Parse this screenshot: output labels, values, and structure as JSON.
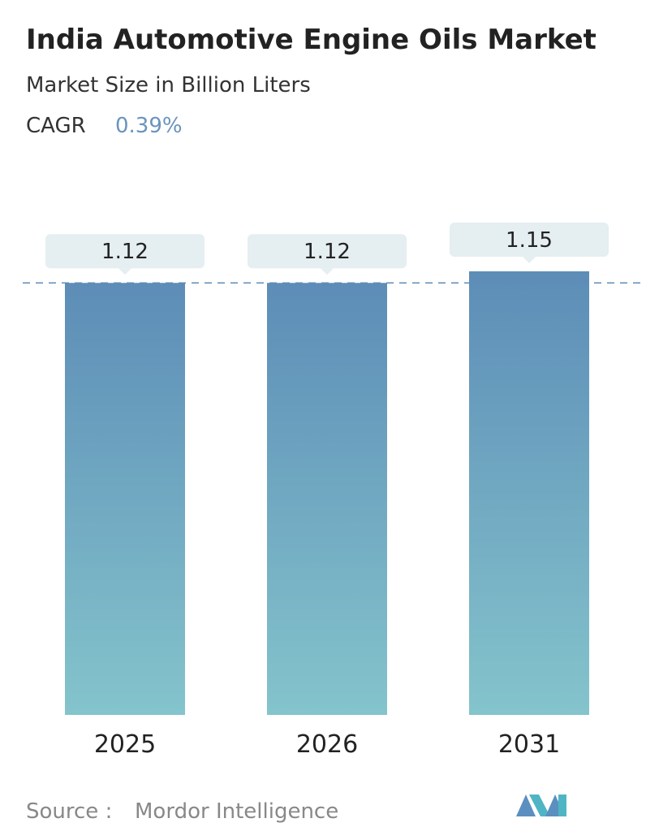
{
  "chart_data": {
    "type": "bar",
    "title": "India Automotive Engine Oils Market",
    "subtitle": "Market Size in Billion Liters",
    "cagr": {
      "label": "CAGR",
      "value": "0.39%"
    },
    "categories": [
      "2025",
      "2026",
      "2031"
    ],
    "values": [
      1.12,
      1.12,
      1.15
    ],
    "colors": [
      "#5d8db7",
      "#84c4cc"
    ],
    "source": {
      "label": "Source :",
      "name": "Mordor Intelligence"
    }
  }
}
